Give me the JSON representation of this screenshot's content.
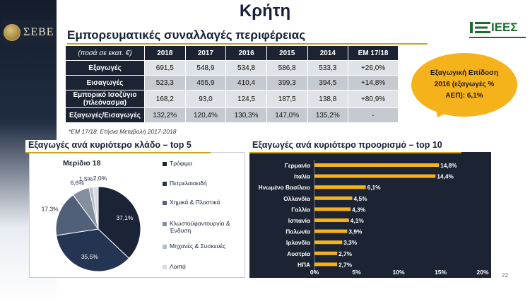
{
  "page_title": "Κρήτη",
  "logo": {
    "text": "ΣΕΒΕ"
  },
  "partner_logo": {
    "text": "ΙΕΕΣ"
  },
  "subtitle": "Εμπορευματικές συναλλαγές περιφέρειας",
  "table": {
    "unit_label": "(ποσά σε εκατ. €)",
    "columns": [
      "2018",
      "2017",
      "2016",
      "2015",
      "2014",
      "ΕΜ 17/18"
    ],
    "rows": [
      {
        "label": "Εξαγωγές",
        "values": [
          "691,5",
          "548,9",
          "534,8",
          "586,8",
          "533,3",
          "+26,0%"
        ]
      },
      {
        "label": "Εισαγωγές",
        "values": [
          "523,3",
          "455,9",
          "410,4",
          "399,3",
          "394,5",
          "+14,8%"
        ]
      },
      {
        "label": "Εμπορικό Ισοζύγιο (πλεόνασμα)",
        "values": [
          "168,2",
          "93,0",
          "124,5",
          "187,5",
          "138,8",
          "+80,9%"
        ]
      },
      {
        "label": "Εξαγωγές/Εισαγωγές",
        "values": [
          "132,2%",
          "120,4%",
          "130,3%",
          "147,0%",
          "135,2%",
          "-"
        ]
      }
    ],
    "footnote": "*ΕΜ 17/18: Ετήσια Μεταβολή 2017-2018"
  },
  "callout": {
    "line1": "Εξαγωγική Επίδοση",
    "line2": "2016 (εξαγωγές %",
    "line3": "ΑΕΠ): 6,1%"
  },
  "left_panel": {
    "title": "Εξαγωγές ανά κυριότερο κλάδο – top 5"
  },
  "right_panel": {
    "title": "Εξαγωγές ανά κυριότερο προορισμό – top 10"
  },
  "page_number": "22",
  "colors": {
    "navy": "#1c2434",
    "gold": "#f5b21a",
    "rule": "#c9a227"
  },
  "chart_data": [
    {
      "type": "pie",
      "title": "Μερίδιο 18",
      "categories": [
        "Τρόφιμα",
        "Πετρελαιοειδή",
        "Χημικά & Πλαστικά",
        "Κλωστοϋφαντουργία & Ένδυση",
        "Μηχανές & Συσκευές",
        "Λοιπά"
      ],
      "values": [
        37.1,
        35.5,
        17.3,
        6.6,
        1.5,
        2.0
      ],
      "labels": [
        "37,1%",
        "35,5%",
        "17,3%",
        "6,6%",
        "1,5%",
        "2,0%"
      ],
      "colors": [
        "#1b2437",
        "#243554",
        "#506078",
        "#858f9e",
        "#b6bcc6",
        "#d8dce2"
      ]
    },
    {
      "type": "bar",
      "orientation": "horizontal",
      "categories": [
        "Γερμανία",
        "Ιταλία",
        "Ηνωμένο Βασίλειο",
        "Ολλανδία",
        "Γαλλία",
        "Ισπανία",
        "Πολωνία",
        "Ιρλανδία",
        "Αυστρία",
        "ΗΠΑ"
      ],
      "values": [
        14.8,
        14.4,
        6.1,
        4.5,
        4.3,
        4.1,
        3.9,
        3.3,
        2.7,
        2.7
      ],
      "labels": [
        "14,8%",
        "14,4%",
        "6,1%",
        "4,5%",
        "4,3%",
        "4,1%",
        "3,9%",
        "3,3%",
        "2,7%",
        "2,7%"
      ],
      "xlim": [
        0,
        20
      ],
      "xticks": [
        0,
        5,
        10,
        15,
        20
      ],
      "xtick_labels": [
        "0%",
        "5%",
        "10%",
        "15%",
        "20%"
      ],
      "bar_color": "#f5b21a"
    }
  ]
}
